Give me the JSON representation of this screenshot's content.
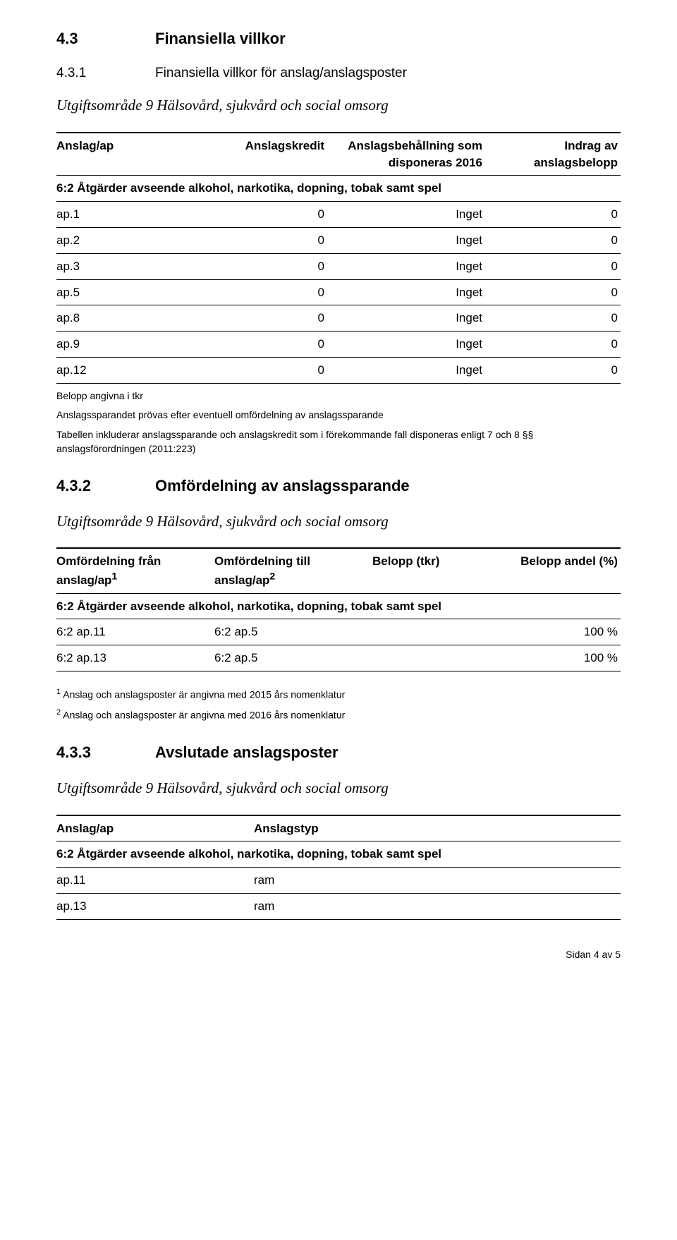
{
  "sec43": {
    "num": "4.3",
    "title": "Finansiella villkor"
  },
  "sec431": {
    "num": "4.3.1",
    "title": "Finansiella villkor för anslag/anslagsposter"
  },
  "uo9": "Utgiftsområde 9 Hälsovård, sjukvård och social omsorg",
  "t1": {
    "headers": {
      "c1": "Anslag/ap",
      "c2": "Anslagskredit",
      "c3": "Anslagsbehållning som disponeras 2016",
      "c4": "Indrag av anslagsbelopp"
    },
    "span": "6:2 Åtgärder avseende alkohol, narkotika, dopning, tobak samt spel",
    "rows": [
      {
        "c1": "ap.1",
        "c2": "0",
        "c3": "Inget",
        "c4": "0"
      },
      {
        "c1": "ap.2",
        "c2": "0",
        "c3": "Inget",
        "c4": "0"
      },
      {
        "c1": "ap.3",
        "c2": "0",
        "c3": "Inget",
        "c4": "0"
      },
      {
        "c1": "ap.5",
        "c2": "0",
        "c3": "Inget",
        "c4": "0"
      },
      {
        "c1": "ap.8",
        "c2": "0",
        "c3": "Inget",
        "c4": "0"
      },
      {
        "c1": "ap.9",
        "c2": "0",
        "c3": "Inget",
        "c4": "0"
      },
      {
        "c1": "ap.12",
        "c2": "0",
        "c3": "Inget",
        "c4": "0"
      }
    ],
    "foot1": "Belopp angivna i tkr",
    "foot2": "Anslagssparandet prövas efter eventuell omfördelning av anslagssparande",
    "foot3": "Tabellen inkluderar anslagssparande och anslagskredit som i förekommande fall disponeras enligt 7 och 8 §§ anslagsförordningen (2011:223)"
  },
  "sec432": {
    "num": "4.3.2",
    "title": "Omfördelning av anslagssparande"
  },
  "t2": {
    "headers": {
      "c1a": "Omfördelning från",
      "c1b": "anslag/ap",
      "c2a": "Omfördelning till",
      "c2b": "anslag/ap",
      "c3": "Belopp (tkr)",
      "c4": "Belopp andel (%)"
    },
    "span": "6:2 Åtgärder avseende alkohol, narkotika, dopning, tobak samt spel",
    "rows": [
      {
        "c1": "6:2 ap.11",
        "c2": "6:2 ap.5",
        "c3": "",
        "c4": "100 %"
      },
      {
        "c1": "6:2 ap.13",
        "c2": "6:2 ap.5",
        "c3": "",
        "c4": "100 %"
      }
    ],
    "foot1": " Anslag och anslagsposter är angivna med 2015 års nomenklatur",
    "foot2": " Anslag och anslagsposter är angivna med 2016 års nomenklatur"
  },
  "sec433": {
    "num": "4.3.3",
    "title": "Avslutade anslagsposter"
  },
  "t3": {
    "headers": {
      "c1": "Anslag/ap",
      "c2": "Anslagstyp"
    },
    "span": "6:2 Åtgärder avseende alkohol, narkotika, dopning, tobak samt spel",
    "rows": [
      {
        "c1": "ap.11",
        "c2": "ram"
      },
      {
        "c1": "ap.13",
        "c2": "ram"
      }
    ]
  },
  "pagenum": "Sidan 4 av 5"
}
